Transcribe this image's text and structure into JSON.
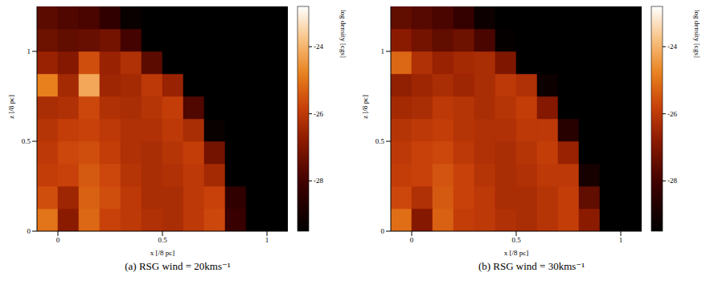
{
  "chart_data": [
    {
      "type": "heatmap",
      "title": "(a) RSG wind = 20kms⁻¹",
      "x_label": "x [/8 pc]",
      "y_label": "z [/8 pc]",
      "xlim": [
        -0.1,
        1.1
      ],
      "xticks": [
        0,
        0.5,
        1
      ],
      "ylim": [
        0,
        1.25
      ],
      "yticks": [
        0,
        0.5,
        1
      ],
      "x_edges": [
        -0.1,
        0,
        0.1,
        0.2,
        0.3,
        0.4,
        0.5,
        0.6,
        0.7,
        0.8,
        0.9,
        1.0,
        1.1
      ],
      "y_edges": [
        0,
        0.125,
        0.25,
        0.375,
        0.5,
        0.625,
        0.75,
        0.875,
        1.0,
        1.125,
        1.25
      ],
      "cells": [
        [
          -25.0,
          -26.8,
          -25.2,
          -25.8,
          -26.0,
          -26.2,
          -26.3,
          -26.0,
          -25.7,
          -28.2,
          -29.5,
          -29.5
        ],
        [
          -25.6,
          -26.5,
          -25.3,
          -25.6,
          -26.0,
          -26.3,
          -26.3,
          -26.0,
          -25.8,
          -28.4,
          -29.5,
          -29.5
        ],
        [
          -25.9,
          -25.8,
          -25.4,
          -25.7,
          -26.1,
          -26.3,
          -26.2,
          -26.0,
          -26.4,
          -29.5,
          -29.5,
          -29.5
        ],
        [
          -26.0,
          -25.7,
          -25.6,
          -25.9,
          -26.2,
          -26.3,
          -26.1,
          -25.9,
          -27.2,
          -29.5,
          -29.5,
          -29.5
        ],
        [
          -26.1,
          -25.9,
          -25.8,
          -26.0,
          -26.2,
          -26.2,
          -26.0,
          -26.3,
          -29.3,
          -29.5,
          -29.5,
          -29.5
        ],
        [
          -26.3,
          -26.2,
          -25.7,
          -26.2,
          -26.3,
          -26.1,
          -25.9,
          -27.8,
          -29.5,
          -29.5,
          -29.5,
          -29.5
        ],
        [
          -24.8,
          -26.4,
          -24.2,
          -26.5,
          -26.4,
          -26.0,
          -26.6,
          -29.5,
          -29.5,
          -29.5,
          -29.5,
          -29.5
        ],
        [
          -26.6,
          -26.9,
          -25.6,
          -26.6,
          -26.2,
          -27.6,
          -29.5,
          -29.5,
          -29.5,
          -29.5,
          -29.5,
          -29.5
        ],
        [
          -27.3,
          -27.5,
          -27.4,
          -27.2,
          -28.0,
          -29.5,
          -29.5,
          -29.5,
          -29.5,
          -29.5,
          -29.5,
          -29.5
        ],
        [
          -27.6,
          -27.8,
          -27.9,
          -28.4,
          -29.3,
          -29.5,
          -29.5,
          -29.5,
          -29.5,
          -29.5,
          -29.5,
          -29.5
        ]
      ],
      "colorbar_label": "log density [cgs]",
      "colorbar_range": [
        -29.5,
        -22.8
      ],
      "colorbar_ticks": [
        -28,
        -26,
        -24
      ]
    },
    {
      "type": "heatmap",
      "title": "(b) RSG wind = 30kms⁻¹",
      "x_label": "x [/8 pc]",
      "y_label": "z [/8 pc]",
      "xlim": [
        -0.1,
        1.1
      ],
      "xticks": [
        0,
        0.5,
        1
      ],
      "ylim": [
        0,
        1.25
      ],
      "yticks": [
        0,
        0.5,
        1
      ],
      "x_edges": [
        -0.1,
        0,
        0.1,
        0.2,
        0.3,
        0.4,
        0.5,
        0.6,
        0.7,
        0.8,
        0.9,
        1.0,
        1.1
      ],
      "y_edges": [
        0,
        0.125,
        0.25,
        0.375,
        0.5,
        0.625,
        0.75,
        0.875,
        1.0,
        1.125,
        1.25
      ],
      "cells": [
        [
          -25.1,
          -26.9,
          -25.3,
          -25.9,
          -26.0,
          -26.2,
          -26.3,
          -26.1,
          -25.9,
          -26.8,
          -29.5,
          -29.5
        ],
        [
          -25.7,
          -26.2,
          -25.4,
          -25.8,
          -26.0,
          -26.3,
          -26.3,
          -26.1,
          -25.9,
          -27.5,
          -29.5,
          -29.5
        ],
        [
          -25.9,
          -25.8,
          -25.5,
          -25.8,
          -26.1,
          -26.3,
          -26.2,
          -26.0,
          -26.0,
          -29.0,
          -29.5,
          -29.5
        ],
        [
          -26.0,
          -25.8,
          -25.7,
          -26.0,
          -26.2,
          -26.3,
          -26.1,
          -25.9,
          -26.6,
          -29.5,
          -29.5,
          -29.5
        ],
        [
          -26.1,
          -26.0,
          -25.9,
          -26.1,
          -26.2,
          -26.2,
          -26.0,
          -26.0,
          -28.6,
          -29.5,
          -29.5,
          -29.5
        ],
        [
          -26.4,
          -26.3,
          -26.0,
          -26.1,
          -26.3,
          -26.1,
          -25.9,
          -26.9,
          -29.5,
          -29.5,
          -29.5,
          -29.5
        ],
        [
          -26.7,
          -26.5,
          -26.3,
          -26.5,
          -26.3,
          -26.0,
          -26.2,
          -29.2,
          -29.5,
          -29.5,
          -29.5,
          -29.5
        ],
        [
          -25.2,
          -26.2,
          -26.6,
          -26.4,
          -26.3,
          -27.0,
          -29.5,
          -29.5,
          -29.5,
          -29.5,
          -29.5,
          -29.5
        ],
        [
          -26.8,
          -27.2,
          -27.5,
          -27.3,
          -27.9,
          -29.4,
          -29.5,
          -29.5,
          -29.5,
          -29.5,
          -29.5,
          -29.5
        ],
        [
          -27.5,
          -27.7,
          -27.9,
          -28.3,
          -29.2,
          -29.5,
          -29.5,
          -29.5,
          -29.5,
          -29.5,
          -29.5,
          -29.5
        ]
      ],
      "colorbar_label": "log density [cgs]",
      "colorbar_range": [
        -29.5,
        -22.8
      ],
      "colorbar_ticks": [
        -28,
        -26,
        -24
      ]
    }
  ]
}
